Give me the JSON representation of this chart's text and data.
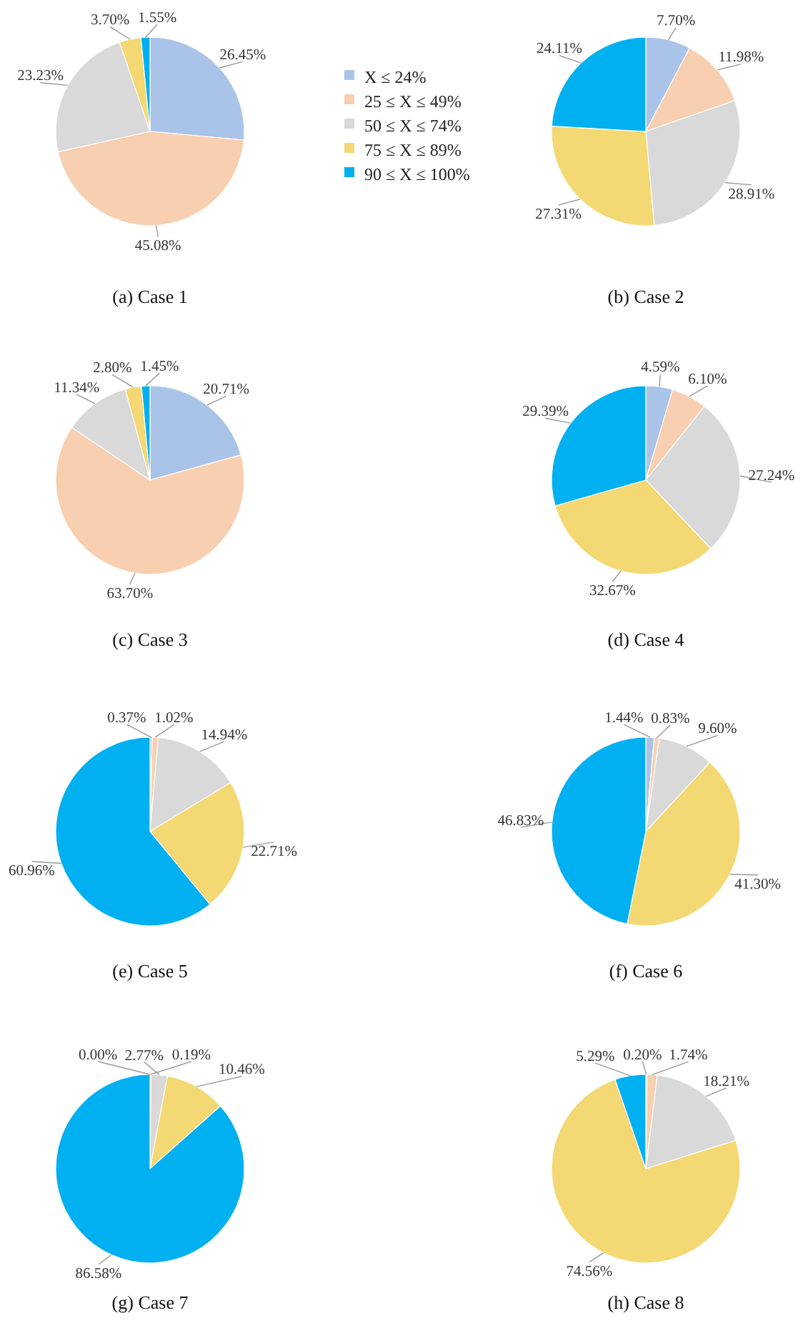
{
  "chart_data": [
    {
      "type": "pie",
      "title": "(a)  Case 1",
      "categories": [
        "X ≤ 24%",
        "25 ≤ X ≤ 49%",
        "50 ≤ X ≤ 74%",
        "75 ≤ X ≤ 89%",
        "90 ≤ X ≤ 100%"
      ],
      "values": [
        26.45,
        45.08,
        23.23,
        3.7,
        1.55
      ],
      "colors": [
        "#a9c4e8",
        "#f8cfb0",
        "#d9d9d9",
        "#f3d873",
        "#00b0f0"
      ],
      "value_labels": [
        "26.45%",
        "45.08%",
        "23.23%",
        "3.70%",
        "1.55%"
      ],
      "legend": "right"
    },
    {
      "type": "pie",
      "title": "(b)  Case 2",
      "categories": [
        null,
        null,
        null,
        null,
        null
      ],
      "values": [
        7.7,
        11.98,
        28.91,
        27.31,
        24.11
      ],
      "colors": [
        "#a9c4e8",
        "#f8cfb0",
        "#d9d9d9",
        "#f3d873",
        "#00b0f0"
      ],
      "value_labels": [
        "7.70%",
        "11.98%",
        "28.91%",
        "27.31%",
        "24.11%"
      ],
      "legend": false
    },
    {
      "type": "pie",
      "title": "(c)  Case 3",
      "categories": [
        null,
        null,
        null,
        null,
        null
      ],
      "values": [
        20.71,
        63.7,
        11.34,
        2.8,
        1.45
      ],
      "colors": [
        "#a9c4e8",
        "#f8cfb0",
        "#d9d9d9",
        "#f3d873",
        "#00b0f0"
      ],
      "value_labels": [
        "20.71%",
        "63.70%",
        "11.34%",
        "2.80%",
        "1.45%"
      ],
      "legend": false
    },
    {
      "type": "pie",
      "title": "(d)  Case 4",
      "categories": [
        null,
        null,
        null,
        null,
        null
      ],
      "values": [
        4.59,
        6.1,
        27.24,
        32.67,
        29.39
      ],
      "colors": [
        "#a9c4e8",
        "#f8cfb0",
        "#d9d9d9",
        "#f3d873",
        "#00b0f0"
      ],
      "value_labels": [
        "4.59%",
        "6.10%",
        "27.24%",
        "32.67%",
        "29.39%"
      ],
      "legend": false
    },
    {
      "type": "pie",
      "title": "(e)  Case 5",
      "categories": [
        null,
        null,
        null,
        null,
        null
      ],
      "values": [
        0.37,
        1.02,
        14.94,
        22.71,
        60.96
      ],
      "colors": [
        "#a9c4e8",
        "#f8cfb0",
        "#d9d9d9",
        "#f3d873",
        "#00b0f0"
      ],
      "value_labels": [
        "0.37%",
        "1.02%",
        "14.94%",
        "22.71%",
        "60.96%"
      ],
      "legend": false
    },
    {
      "type": "pie",
      "title": "(f)  Case 6",
      "categories": [
        null,
        null,
        null,
        null,
        null
      ],
      "values": [
        1.44,
        0.83,
        9.6,
        41.3,
        46.83
      ],
      "colors": [
        "#a9c4e8",
        "#f8cfb0",
        "#d9d9d9",
        "#f3d873",
        "#00b0f0"
      ],
      "value_labels": [
        "1.44%",
        "0.83%",
        "9.60%",
        "41.30%",
        "46.83%"
      ],
      "legend": false
    },
    {
      "type": "pie",
      "title": "(g)  Case 7",
      "categories": [
        null,
        null,
        null,
        null,
        null
      ],
      "values": [
        0.0,
        0.19,
        2.77,
        10.46,
        86.58
      ],
      "colors": [
        "#a9c4e8",
        "#f8cfb0",
        "#d9d9d9",
        "#f3d873",
        "#00b0f0"
      ],
      "value_labels": [
        "0.00%",
        "0.19%",
        "2.77%",
        "10.46%",
        "86.58%"
      ],
      "legend": false
    },
    {
      "type": "pie",
      "title": "(h)  Case 8",
      "categories": [
        null,
        null,
        null,
        null,
        null
      ],
      "values": [
        0.2,
        1.74,
        18.21,
        74.56,
        5.29
      ],
      "colors": [
        "#a9c4e8",
        "#f8cfb0",
        "#d9d9d9",
        "#f3d873",
        "#00b0f0"
      ],
      "value_labels": [
        "0.20%",
        "1.74%",
        "18.21%",
        "74.56%",
        "5.29%"
      ],
      "legend": false
    }
  ]
}
